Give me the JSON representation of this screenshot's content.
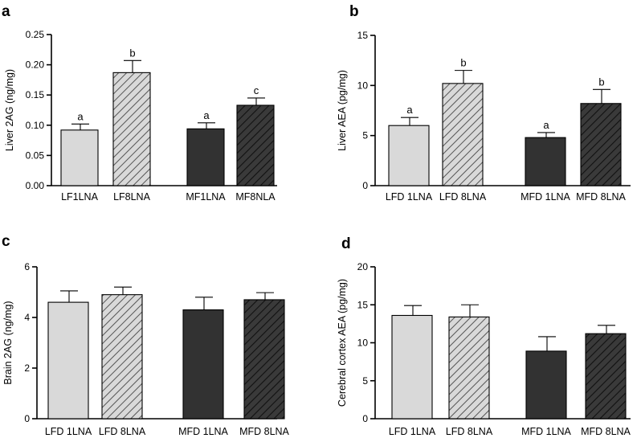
{
  "chart_data": [
    {
      "type": "bar",
      "panel": "a",
      "ylabel": "Liver 2AG  (ng/mg)",
      "ylim": [
        0,
        0.25
      ],
      "yticks": [
        "0.00",
        "0.05",
        "0.10",
        "0.15",
        "0.20",
        "0.25"
      ],
      "categories": [
        "LF1LNA",
        "LF8LNA",
        "MF1LNA",
        "MF8NLA"
      ],
      "values": [
        0.092,
        0.187,
        0.094,
        0.133
      ],
      "errors": [
        0.01,
        0.02,
        0.01,
        0.012
      ],
      "letters": [
        "a",
        "b",
        "a",
        "c"
      ],
      "styles": [
        "light",
        "light-hatch",
        "dark",
        "dark-hatch"
      ]
    },
    {
      "type": "bar",
      "panel": "b",
      "ylabel": "Liver AEA (pg/mg)",
      "ylim": [
        0,
        15
      ],
      "yticks": [
        "0",
        "5",
        "10",
        "15"
      ],
      "categories": [
        "LFD 1LNA",
        "LFD 8LNA",
        "MFD 1LNA",
        "MFD 8LNA"
      ],
      "values": [
        6.0,
        10.2,
        4.8,
        8.2
      ],
      "errors": [
        0.8,
        1.3,
        0.5,
        1.4
      ],
      "letters": [
        "a",
        "b",
        "a",
        "b"
      ],
      "styles": [
        "light",
        "light-hatch",
        "dark",
        "dark-hatch"
      ]
    },
    {
      "type": "bar",
      "panel": "c",
      "ylabel": "Brain 2AG (ng/mg)",
      "ylim": [
        0,
        6
      ],
      "yticks": [
        "0",
        "2",
        "4",
        "6"
      ],
      "categories": [
        "LFD 1LNA",
        "LFD 8LNA",
        "MFD 1LNA",
        "MFD 8LNA"
      ],
      "values": [
        4.6,
        4.9,
        4.3,
        4.7
      ],
      "errors": [
        0.45,
        0.3,
        0.5,
        0.28
      ],
      "letters": [
        "",
        "",
        "",
        ""
      ],
      "styles": [
        "light",
        "light-hatch",
        "dark",
        "dark-hatch"
      ]
    },
    {
      "type": "bar",
      "panel": "d",
      "ylabel": "Cerebral cortex AEA (pg/mg)",
      "ylim": [
        0,
        20
      ],
      "yticks": [
        "0",
        "5",
        "10",
        "15",
        "20"
      ],
      "categories": [
        "LFD 1LNA",
        "LFD 8LNA",
        "MFD 1LNA",
        "MFD 8LNA"
      ],
      "values": [
        13.6,
        13.4,
        8.9,
        11.2
      ],
      "errors": [
        1.3,
        1.6,
        1.9,
        1.1
      ],
      "letters": [
        "",
        "",
        "",
        ""
      ],
      "styles": [
        "light",
        "light-hatch",
        "dark",
        "dark-hatch"
      ]
    }
  ],
  "colors": {
    "light": "#d9d9d9",
    "dark": "#323232",
    "hatch_on_light": "#555555",
    "hatch_on_dark": "#111111"
  }
}
